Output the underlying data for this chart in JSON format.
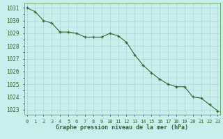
{
  "x": [
    0,
    1,
    2,
    3,
    4,
    5,
    6,
    7,
    8,
    9,
    10,
    11,
    12,
    13,
    14,
    15,
    16,
    17,
    18,
    19,
    20,
    21,
    22,
    23
  ],
  "y": [
    1031.0,
    1030.7,
    1030.0,
    1029.8,
    1029.1,
    1029.1,
    1029.0,
    1028.7,
    1028.7,
    1028.7,
    1029.0,
    1028.8,
    1028.3,
    1027.3,
    1026.5,
    1025.9,
    1025.4,
    1025.0,
    1024.8,
    1024.8,
    1024.0,
    1023.9,
    1023.4,
    1022.9
  ],
  "line_color": "#2d6a2d",
  "marker_color": "#2d6a2d",
  "bg_color": "#c8eeee",
  "grid_color": "#aed4d4",
  "border_color": "#6aaa6a",
  "xlabel": "Graphe pression niveau de la mer (hPa)",
  "xlabel_color": "#2d6a2d",
  "ylabel_ticks": [
    1023,
    1024,
    1025,
    1026,
    1027,
    1028,
    1029,
    1030,
    1031
  ],
  "xtick_labels": [
    "0",
    "1",
    "2",
    "3",
    "4",
    "5",
    "6",
    "7",
    "8",
    "9",
    "10",
    "11",
    "12",
    "13",
    "14",
    "15",
    "16",
    "17",
    "18",
    "19",
    "20",
    "21",
    "22",
    "23"
  ],
  "ylim": [
    1022.6,
    1031.4
  ],
  "xlim": [
    -0.3,
    23.3
  ],
  "figsize": [
    3.2,
    2.0
  ],
  "dpi": 100
}
